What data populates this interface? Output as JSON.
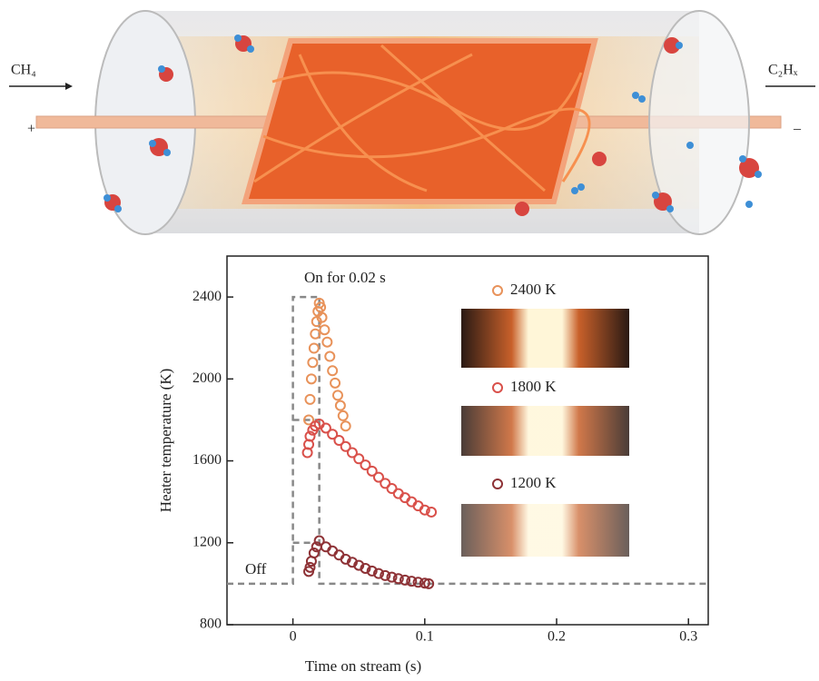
{
  "illustration": {
    "inlet_label": "CH₄",
    "outlet_label": "C₂Hₓ",
    "plus": "+",
    "minus": "–"
  },
  "chart_data": {
    "type": "scatter",
    "xlabel": "Time on stream (s)",
    "ylabel": "Heater temperature (K)",
    "xlim": [
      -0.05,
      0.315
    ],
    "ylim": [
      800,
      2600
    ],
    "xticks": [
      0,
      0.1,
      0.2,
      0.3
    ],
    "yticks": [
      800,
      1200,
      1600,
      2000,
      2400
    ],
    "legend": "upper right",
    "annotations": [
      "On for 0.02 s",
      "Off"
    ],
    "pulses": [
      {
        "x": [
          -0.05,
          0,
          0,
          0.02,
          0.02,
          0.315
        ],
        "y": [
          1000,
          1000,
          2400,
          2400,
          1000,
          1000
        ]
      },
      {
        "x": [
          0,
          0.02
        ],
        "y": [
          1800,
          1800
        ]
      },
      {
        "x": [
          0,
          0.02
        ],
        "y": [
          1200,
          1200
        ]
      }
    ],
    "series": [
      {
        "name": "2400 K",
        "color": "#e8925a",
        "x": [
          0.012,
          0.013,
          0.014,
          0.015,
          0.016,
          0.017,
          0.018,
          0.019,
          0.02,
          0.021,
          0.022,
          0.024,
          0.026,
          0.028,
          0.03,
          0.032,
          0.034,
          0.036,
          0.038,
          0.04
        ],
        "values": [
          1800,
          1900,
          2000,
          2080,
          2150,
          2220,
          2280,
          2330,
          2370,
          2350,
          2300,
          2240,
          2180,
          2110,
          2040,
          1980,
          1920,
          1870,
          1820,
          1770
        ]
      },
      {
        "name": "1800 K",
        "color": "#d9504a",
        "x": [
          0.011,
          0.012,
          0.013,
          0.015,
          0.017,
          0.02,
          0.025,
          0.03,
          0.035,
          0.04,
          0.045,
          0.05,
          0.055,
          0.06,
          0.065,
          0.07,
          0.075,
          0.08,
          0.085,
          0.09,
          0.095,
          0.1,
          0.105
        ],
        "values": [
          1640,
          1680,
          1720,
          1750,
          1770,
          1780,
          1760,
          1730,
          1700,
          1670,
          1640,
          1610,
          1580,
          1550,
          1520,
          1490,
          1465,
          1440,
          1420,
          1400,
          1380,
          1360,
          1350
        ]
      },
      {
        "name": "1200 K",
        "color": "#8e3236",
        "x": [
          0.012,
          0.013,
          0.014,
          0.016,
          0.018,
          0.02,
          0.025,
          0.03,
          0.035,
          0.04,
          0.045,
          0.05,
          0.055,
          0.06,
          0.065,
          0.07,
          0.075,
          0.08,
          0.085,
          0.09,
          0.095,
          0.1,
          0.103
        ],
        "values": [
          1060,
          1080,
          1110,
          1150,
          1180,
          1210,
          1180,
          1160,
          1140,
          1120,
          1105,
          1090,
          1075,
          1062,
          1050,
          1040,
          1032,
          1025,
          1018,
          1012,
          1007,
          1003,
          1000
        ]
      }
    ]
  }
}
